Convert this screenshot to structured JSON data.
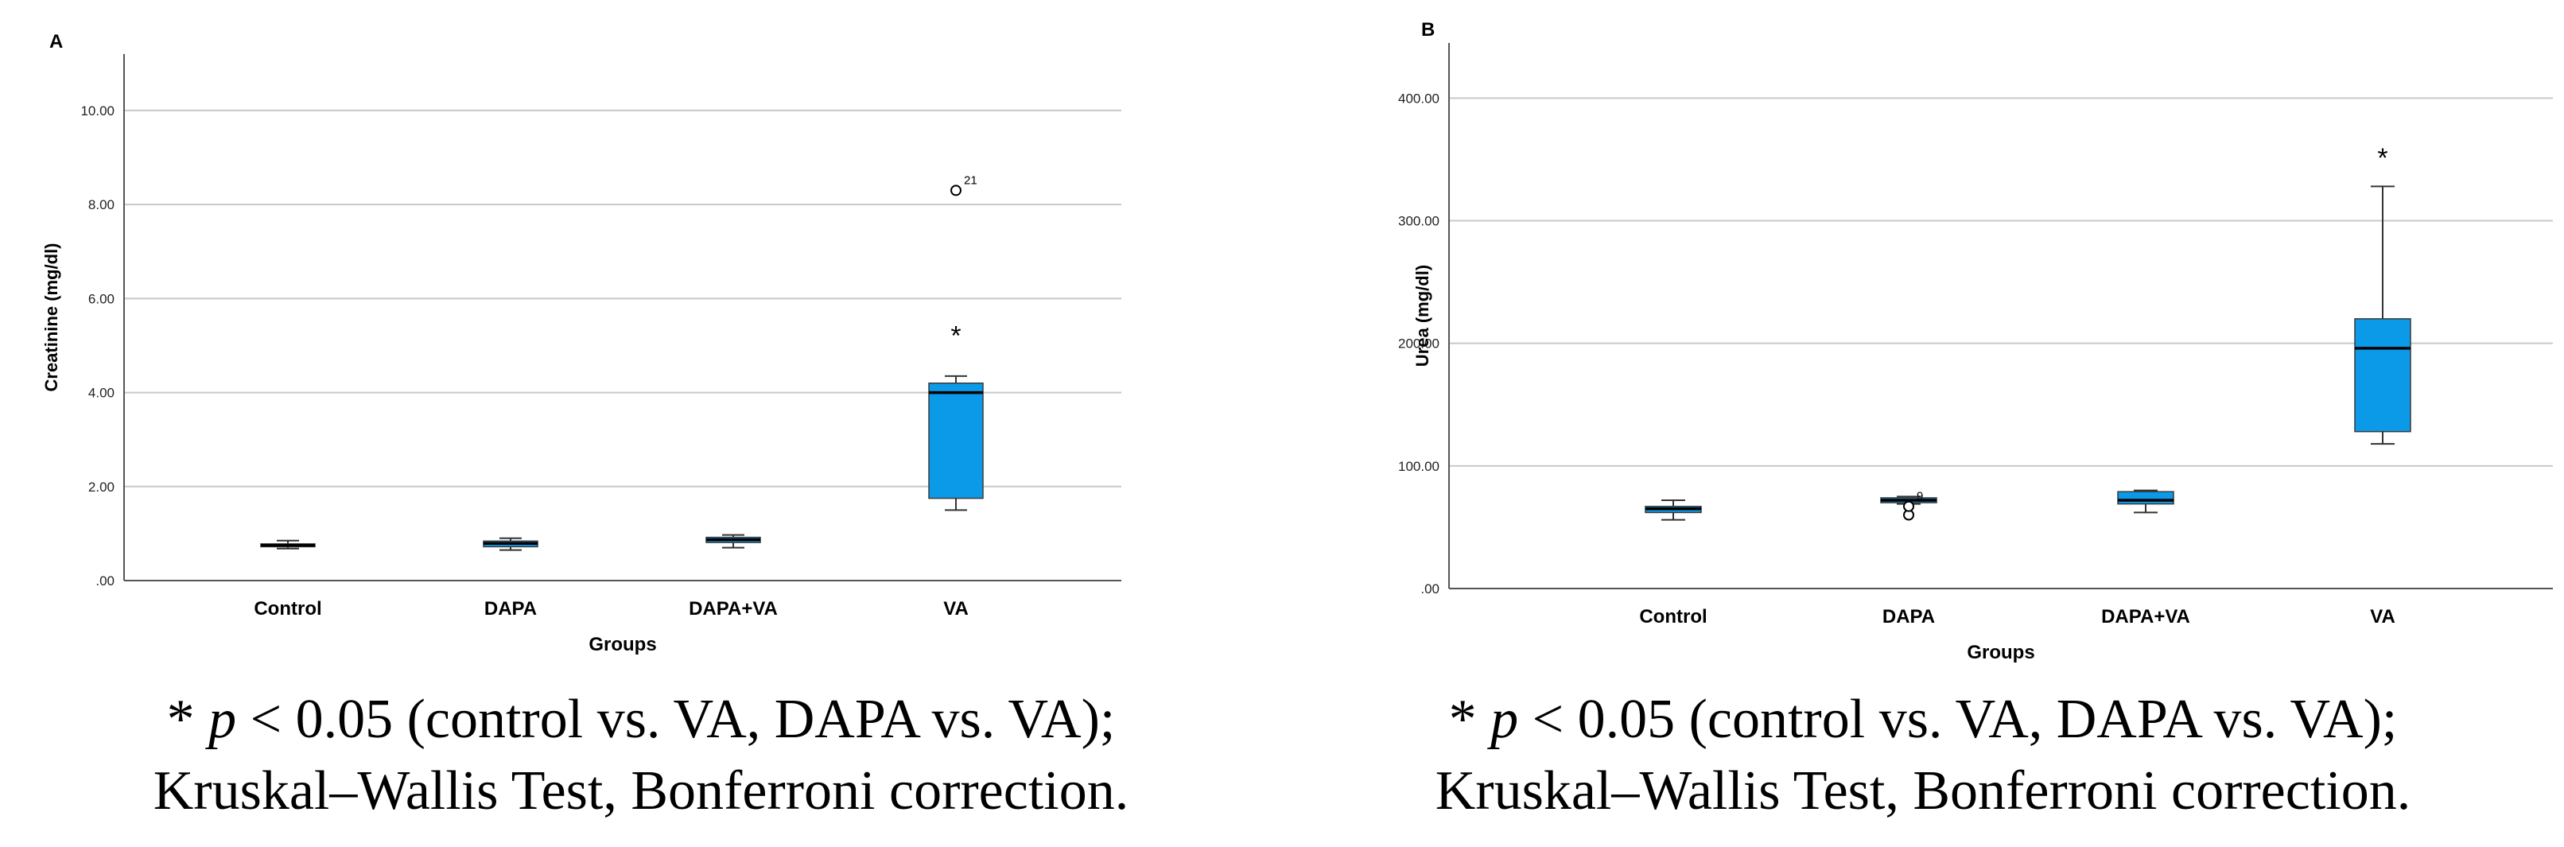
{
  "panels": [
    {
      "caption_line1_pre": "* ",
      "caption_line1_p": "p",
      "caption_line1_post": " < 0.05 (control vs. VA, DAPA vs. VA);",
      "caption_line2": "Kruskal–Wallis Test, Bonferroni correction."
    },
    {
      "caption_line1_pre": "* ",
      "caption_line1_p": "p",
      "caption_line1_post": " < 0.05 (control vs. VA, DAPA vs. VA);",
      "caption_line2": "Kruskal–Wallis Test, Bonferroni correction."
    }
  ],
  "colors": {
    "box": "#0a9ae8",
    "grid": "#c8c8c8",
    "axis": "#555555",
    "median": "#000000"
  },
  "chart_data": [
    {
      "type": "box",
      "panel_label": "A",
      "xlabel": "Groups",
      "ylabel": "Creatinine (mg/dl)",
      "ylim": [
        0,
        11.2
      ],
      "yticks": [
        0,
        2,
        4,
        6,
        8,
        10
      ],
      "ytick_labels": [
        ".00",
        "2.00",
        "4.00",
        "6.00",
        "8.00",
        "10.00"
      ],
      "grid": true,
      "categories": [
        "Control",
        "DAPA",
        "DAPA+VA",
        "VA"
      ],
      "boxes": [
        {
          "min": 0.68,
          "q1": 0.72,
          "median": 0.75,
          "q3": 0.78,
          "max": 0.85
        },
        {
          "min": 0.65,
          "q1": 0.72,
          "median": 0.79,
          "q3": 0.84,
          "max": 0.9
        },
        {
          "min": 0.7,
          "q1": 0.81,
          "median": 0.87,
          "q3": 0.92,
          "max": 0.97
        },
        {
          "min": 1.5,
          "q1": 1.75,
          "median": 4.0,
          "q3": 4.2,
          "max": 4.35
        }
      ],
      "outliers": [
        {
          "category": "VA",
          "value": 8.3,
          "label": "21"
        }
      ],
      "annotations": [
        {
          "category": "VA",
          "value": 5.25,
          "text": "*"
        }
      ]
    },
    {
      "type": "box",
      "panel_label": "B",
      "xlabel": "Groups",
      "ylabel": "Urea (mg/dl)",
      "ylim": [
        0,
        445
      ],
      "yticks": [
        0,
        100,
        200,
        300,
        400
      ],
      "ytick_labels": [
        ".00",
        "100.00",
        "200.00",
        "300.00",
        "400.00"
      ],
      "grid": true,
      "categories": [
        "Control",
        "DAPA",
        "DAPA+VA",
        "VA"
      ],
      "boxes": [
        {
          "min": 56,
          "q1": 62,
          "median": 65,
          "q3": 67,
          "max": 72
        },
        {
          "min": 69,
          "q1": 70,
          "median": 72,
          "q3": 74,
          "max": 75
        },
        {
          "min": 62,
          "q1": 69,
          "median": 72,
          "q3": 79,
          "max": 80
        },
        {
          "min": 118,
          "q1": 128,
          "median": 196,
          "q3": 220,
          "max": 328
        }
      ],
      "outliers": [
        {
          "category": "DAPA",
          "value": 60,
          "label": ""
        },
        {
          "category": "DAPA",
          "value": 67,
          "label": "9"
        }
      ],
      "annotations": [
        {
          "category": "VA",
          "value": 353,
          "text": "*"
        }
      ]
    }
  ]
}
